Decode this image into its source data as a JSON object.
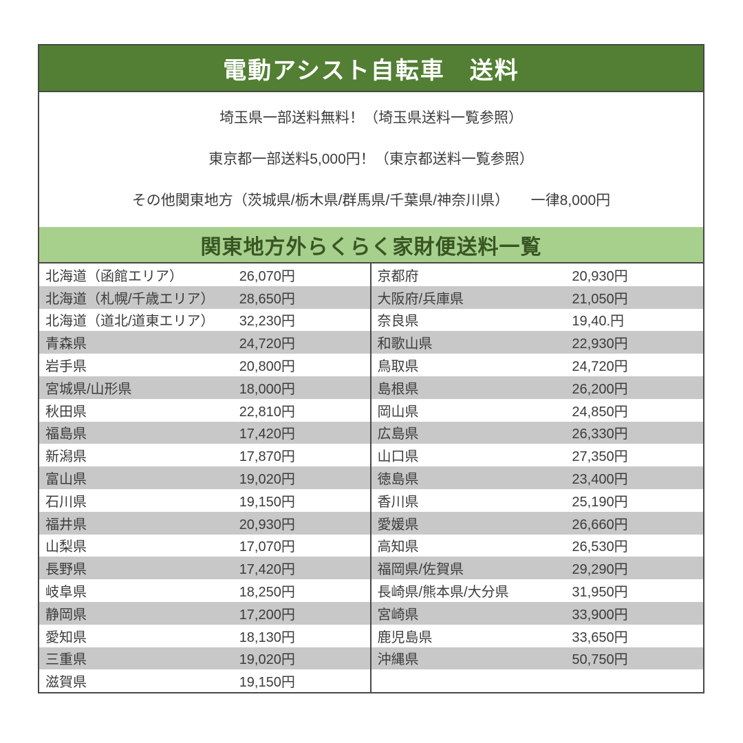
{
  "header": {
    "title": "電動アシスト自転車　送料"
  },
  "notes": {
    "lines": [
      "埼玉県一部送料無料！（埼玉県送料一覧参照）",
      "東京都一部送料5,000円！（東京都送料一覧参照）",
      "その他関東地方（茨城県/栃木県/群馬県/千葉県/神奈川県）　　一律8,000円"
    ]
  },
  "fee_table": {
    "title": "関東地方外らくらく家財便送料一覧",
    "left_rows": [
      {
        "region": "北海道（函館エリア）",
        "price": "26,070円"
      },
      {
        "region": "北海道（札幌/千歳エリア）",
        "price": "28,650円"
      },
      {
        "region": "北海道（道北/道東エリア）",
        "price": "32,230円"
      },
      {
        "region": "青森県",
        "price": "24,720円"
      },
      {
        "region": "岩手県",
        "price": "20,800円"
      },
      {
        "region": "宮城県/山形県",
        "price": "18,000円"
      },
      {
        "region": "秋田県",
        "price": "22,810円"
      },
      {
        "region": "福島県",
        "price": "17,420円"
      },
      {
        "region": "新潟県",
        "price": "17,870円"
      },
      {
        "region": "富山県",
        "price": "19,020円"
      },
      {
        "region": "石川県",
        "price": "19,150円"
      },
      {
        "region": "福井県",
        "price": "20,930円"
      },
      {
        "region": "山梨県",
        "price": "17,070円"
      },
      {
        "region": "長野県",
        "price": "17,420円"
      },
      {
        "region": "岐阜県",
        "price": "18,250円"
      },
      {
        "region": "静岡県",
        "price": "17,200円"
      },
      {
        "region": "愛知県",
        "price": "18,130円"
      },
      {
        "region": "三重県",
        "price": "19,020円"
      },
      {
        "region": "滋賀県",
        "price": "19,150円"
      }
    ],
    "right_rows": [
      {
        "region": "京都府",
        "price": "20,930円"
      },
      {
        "region": "大阪府/兵庫県",
        "price": "21,050円"
      },
      {
        "region": "奈良県",
        "price": "19,40.円"
      },
      {
        "region": "和歌山県",
        "price": "22,930円"
      },
      {
        "region": "鳥取県",
        "price": "24,720円"
      },
      {
        "region": "島根県",
        "price": "26,200円"
      },
      {
        "region": "岡山県",
        "price": "24,850円"
      },
      {
        "region": "広島県",
        "price": "26,330円"
      },
      {
        "region": "山口県",
        "price": "27,350円"
      },
      {
        "region": "徳島県",
        "price": "23,400円"
      },
      {
        "region": "香川県",
        "price": "25,190円"
      },
      {
        "region": "愛媛県",
        "price": "26,660円"
      },
      {
        "region": "高知県",
        "price": "26,530円"
      },
      {
        "region": "福岡県/佐賀県",
        "price": "29,290円"
      },
      {
        "region": "長崎県/熊本県/大分県",
        "price": "31,950円"
      },
      {
        "region": "宮崎県",
        "price": "33,900円"
      },
      {
        "region": "鹿児島県",
        "price": "33,650円"
      },
      {
        "region": "沖縄県",
        "price": "50,750円"
      },
      {
        "region": "",
        "price": ""
      }
    ]
  },
  "colors": {
    "header_green": "#527f33",
    "banner_green": "#a8d08d",
    "banner_text_green": "#375623",
    "row_gray": "#c8c8c8",
    "border_dark": "#474747",
    "text_dark": "#3c3c3c"
  }
}
